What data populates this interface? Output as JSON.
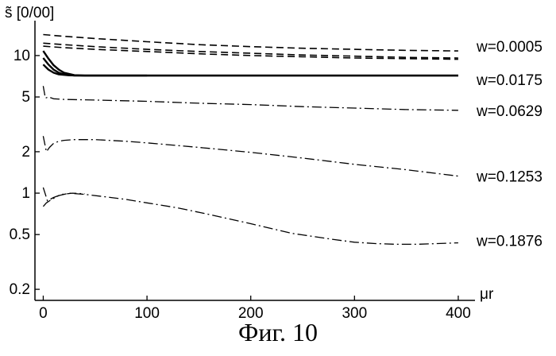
{
  "chart_data": {
    "type": "line",
    "title": "",
    "ylabel": "s̃ [0/00]",
    "xlabel": "μr",
    "y_scale": "log",
    "xlim": [
      -8,
      410
    ],
    "ylim": [
      0.18,
      17
    ],
    "grid": false,
    "legend": "none",
    "x_ticks": [
      0,
      100,
      200,
      300,
      400
    ],
    "x_tick_labels": [
      "0",
      "100",
      "200",
      "300",
      "400"
    ],
    "y_ticks": [
      0.2,
      0.5,
      1,
      2,
      5,
      10
    ],
    "y_tick_labels": [
      "0.2",
      "0.5",
      "1",
      "2",
      "5",
      "10"
    ],
    "series": [
      {
        "name": "w=0.0005",
        "style": "dashed",
        "lines": [
          {
            "x": [
              0,
              20,
              50,
              100,
              150,
              200,
              250,
              300,
              350,
              400
            ],
            "y": [
              14.2,
              13.8,
              13.3,
              12.6,
              12.0,
              11.6,
              11.3,
              11.1,
              10.9,
              10.8
            ]
          },
          {
            "x": [
              0,
              20,
              50,
              100,
              150,
              200,
              250,
              300,
              350,
              400
            ],
            "y": [
              12.3,
              12.0,
              11.6,
              11.1,
              10.7,
              10.4,
              10.1,
              9.9,
              9.7,
              9.6
            ]
          },
          {
            "x": [
              0,
              20,
              50,
              100,
              150,
              200,
              250,
              300,
              350,
              400
            ],
            "y": [
              11.7,
              11.4,
              11.1,
              10.7,
              10.3,
              10.0,
              9.8,
              9.6,
              9.5,
              9.4
            ]
          }
        ]
      },
      {
        "name": "w=0.0175",
        "style": "solid",
        "lines": [
          {
            "x": [
              0,
              5,
              10,
              15,
              20,
              30,
              40,
              100,
              200,
              300,
              400
            ],
            "y": [
              10.8,
              9.5,
              8.5,
              7.9,
              7.5,
              7.2,
              7.15,
              7.15,
              7.15,
              7.15,
              7.15
            ]
          },
          {
            "x": [
              0,
              5,
              10,
              15,
              20,
              30,
              40,
              100,
              200,
              300,
              400
            ],
            "y": [
              9.6,
              8.6,
              7.9,
              7.5,
              7.3,
              7.15,
              7.15,
              7.15,
              7.15,
              7.15,
              7.15
            ]
          },
          {
            "x": [
              0,
              5,
              10,
              15,
              25,
              40,
              100
            ],
            "y": [
              8.6,
              7.9,
              7.5,
              7.3,
              7.18,
              7.15,
              7.15
            ]
          }
        ]
      },
      {
        "name": "w=0.0629",
        "style": "dashdot",
        "lines": [
          {
            "x": [
              0,
              2,
              5,
              10,
              20,
              50,
              100,
              150,
              200,
              250,
              300,
              350,
              400
            ],
            "y": [
              6.0,
              4.9,
              5.0,
              4.85,
              4.8,
              4.75,
              4.65,
              4.5,
              4.4,
              4.25,
              4.15,
              4.05,
              4.0
            ]
          }
        ]
      },
      {
        "name": "w=0.1253",
        "style": "dashdot",
        "lines": [
          {
            "x": [
              0,
              3,
              6,
              10,
              15,
              20,
              30,
              50,
              80,
              100,
              150,
              200,
              250,
              300,
              350,
              400
            ],
            "y": [
              2.6,
              2.0,
              2.15,
              2.3,
              2.38,
              2.42,
              2.45,
              2.45,
              2.38,
              2.32,
              2.15,
              1.98,
              1.8,
              1.62,
              1.48,
              1.33
            ]
          }
        ]
      },
      {
        "name": "w=0.1876",
        "style": "dashdot",
        "lines": [
          {
            "x": [
              0,
              3,
              8,
              15,
              25,
              40,
              60,
              80,
              100,
              130,
              160,
              200,
              240,
              280,
              300,
              320,
              340,
              360,
              380,
              400
            ],
            "y": [
              0.8,
              0.85,
              0.9,
              0.96,
              1.0,
              0.98,
              0.94,
              0.9,
              0.85,
              0.78,
              0.7,
              0.6,
              0.51,
              0.46,
              0.44,
              0.43,
              0.425,
              0.425,
              0.43,
              0.435
            ]
          },
          {
            "x": [
              0,
              4,
              10,
              18,
              28,
              40
            ],
            "y": [
              1.1,
              0.88,
              0.93,
              0.98,
              1.0,
              0.99
            ]
          }
        ]
      }
    ]
  },
  "caption": "Фиг. 10"
}
